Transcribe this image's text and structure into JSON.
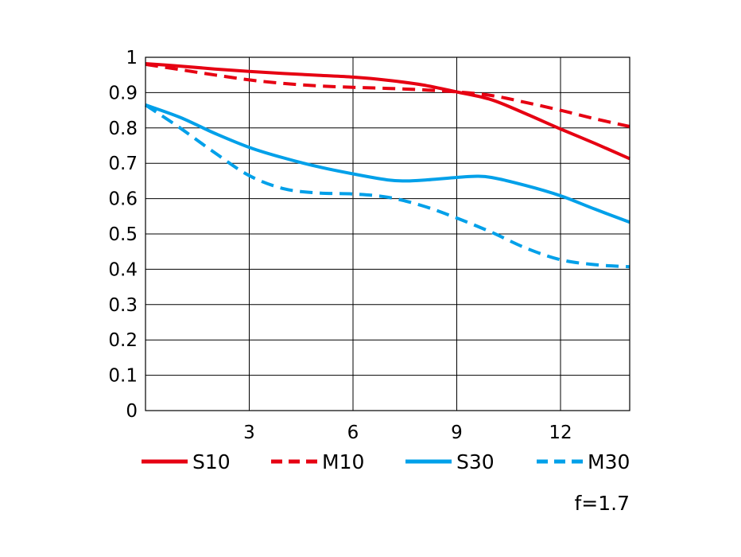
{
  "chart_data": {
    "type": "line",
    "title": "",
    "xlabel": "",
    "ylabel": "",
    "xlim": [
      0,
      14
    ],
    "ylim": [
      0,
      1
    ],
    "xticks": [
      3,
      6,
      9,
      12
    ],
    "xtick_labels": [
      "3",
      "6",
      "9",
      "12"
    ],
    "yticks": [
      0,
      0.1,
      0.2,
      0.3,
      0.4,
      0.5,
      0.6,
      0.7,
      0.8,
      0.9,
      1
    ],
    "ytick_labels": [
      "0",
      "0.1",
      "0.2",
      "0.3",
      "0.4",
      "0.5",
      "0.6",
      "0.7",
      "0.8",
      "0.9",
      "1"
    ],
    "grid": true,
    "legend_position": "bottom",
    "series": [
      {
        "name": "S10",
        "color": "#e60012",
        "dash": "solid",
        "x": [
          0,
          1,
          2,
          3,
          4,
          5,
          6,
          7,
          8,
          9,
          10,
          11,
          12,
          13,
          14
        ],
        "y": [
          0.982,
          0.975,
          0.967,
          0.96,
          0.954,
          0.949,
          0.944,
          0.935,
          0.922,
          0.902,
          0.88,
          0.84,
          0.797,
          0.756,
          0.713
        ]
      },
      {
        "name": "M10",
        "color": "#e60012",
        "dash": "dashed",
        "x": [
          0,
          1,
          2,
          3,
          4,
          5,
          6,
          7,
          8,
          9,
          10,
          11,
          12,
          13,
          14
        ],
        "y": [
          0.98,
          0.965,
          0.95,
          0.936,
          0.926,
          0.919,
          0.915,
          0.912,
          0.908,
          0.902,
          0.892,
          0.872,
          0.85,
          0.826,
          0.804
        ]
      },
      {
        "name": "S30",
        "color": "#00a0e9",
        "dash": "solid",
        "x": [
          0,
          1,
          2,
          3,
          4,
          5,
          6,
          7,
          7.5,
          8,
          9,
          9.5,
          10,
          11,
          12,
          13,
          14
        ],
        "y": [
          0.865,
          0.83,
          0.785,
          0.745,
          0.715,
          0.69,
          0.67,
          0.653,
          0.65,
          0.652,
          0.66,
          0.663,
          0.66,
          0.637,
          0.608,
          0.57,
          0.533
        ]
      },
      {
        "name": "M30",
        "color": "#00a0e9",
        "dash": "dashed",
        "x": [
          0,
          1,
          2,
          3,
          4,
          5,
          6,
          7,
          8,
          9,
          10,
          11,
          12,
          13,
          14
        ],
        "y": [
          0.865,
          0.8,
          0.73,
          0.665,
          0.628,
          0.616,
          0.613,
          0.604,
          0.58,
          0.545,
          0.505,
          0.46,
          0.427,
          0.413,
          0.407
        ]
      }
    ],
    "annotation": "f=1.7"
  }
}
